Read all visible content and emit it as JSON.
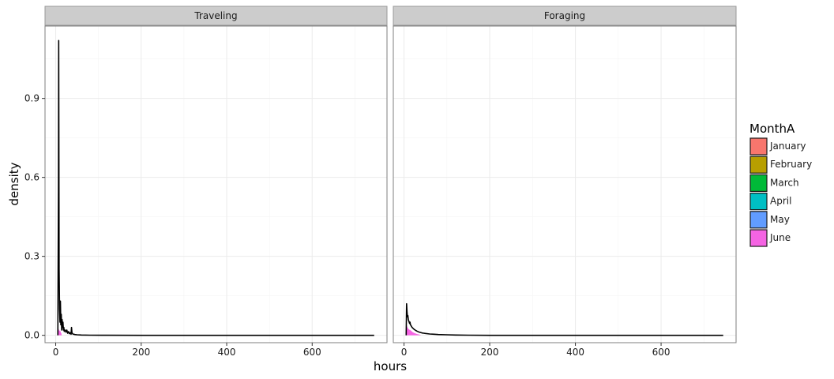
{
  "chart_data": {
    "type": "area",
    "subtype": "density",
    "facet_by": "behavior",
    "facets": [
      "Traveling",
      "Foraging"
    ],
    "xlabel": "hours",
    "ylabel": "density",
    "xlim": [
      -25,
      775
    ],
    "ylim": [
      -0.028,
      1.175
    ],
    "xticks": [
      0,
      200,
      400,
      600
    ],
    "yticks": [
      0.0,
      0.3,
      0.6,
      0.9
    ],
    "ytick_labels": [
      "0.0",
      "0.3",
      "0.6",
      "0.9"
    ],
    "grid": true,
    "legend": {
      "title": "MonthA",
      "position": "right",
      "entries": [
        {
          "name": "January",
          "color": "#F8766D"
        },
        {
          "name": "February",
          "color": "#B79F00"
        },
        {
          "name": "March",
          "color": "#00BA38"
        },
        {
          "name": "April",
          "color": "#00BFC4"
        },
        {
          "name": "May",
          "color": "#619CFF"
        },
        {
          "name": "June",
          "color": "#F564E3"
        }
      ]
    },
    "panels": [
      {
        "facet": "Traveling",
        "curve": {
          "x": [
            5,
            6.5,
            7,
            8,
            9,
            10,
            11,
            12,
            13,
            14,
            15,
            16,
            17,
            18,
            19,
            20,
            22,
            24,
            26,
            28,
            30,
            32,
            34,
            36,
            37,
            38,
            40,
            42,
            45,
            50,
            60,
            80,
            120,
            200,
            400,
            600,
            745
          ],
          "y": [
            0.0,
            0.57,
            1.12,
            0.25,
            0.1,
            0.05,
            0.13,
            0.04,
            0.08,
            0.02,
            0.06,
            0.03,
            0.05,
            0.02,
            0.03,
            0.015,
            0.02,
            0.012,
            0.02,
            0.008,
            0.014,
            0.006,
            0.01,
            0.004,
            0.03,
            0.01,
            0.005,
            0.004,
            0.003,
            0.002,
            0.001,
            0.0005,
            0.0002,
            0.0,
            0.0,
            0.0,
            0.0
          ]
        },
        "june_fill": {
          "x": [
            5,
            6,
            7,
            8,
            9,
            10,
            11,
            12,
            13,
            14
          ],
          "y": [
            0.0,
            0.01,
            0.025,
            0.02,
            0.015,
            0.02,
            0.015,
            0.01,
            0.008,
            0.0
          ]
        }
      },
      {
        "facet": "Foraging",
        "curve": {
          "x": [
            5,
            6,
            7,
            8,
            9,
            10,
            11,
            12,
            13,
            14,
            15,
            16,
            17,
            18,
            19,
            20,
            22,
            24,
            26,
            28,
            30,
            34,
            38,
            42,
            46,
            50,
            60,
            70,
            80,
            100,
            120,
            150,
            200,
            400,
            600,
            745
          ],
          "y": [
            0.0,
            0.12,
            0.09,
            0.07,
            0.075,
            0.06,
            0.055,
            0.05,
            0.045,
            0.05,
            0.04,
            0.038,
            0.035,
            0.032,
            0.03,
            0.028,
            0.025,
            0.022,
            0.02,
            0.018,
            0.016,
            0.013,
            0.011,
            0.009,
            0.008,
            0.007,
            0.005,
            0.004,
            0.003,
            0.002,
            0.001,
            0.0005,
            0.0,
            0.0,
            0.0,
            0.0
          ]
        },
        "june_fill": {
          "x": [
            5,
            6,
            7,
            8,
            9,
            10,
            12,
            14,
            16,
            18,
            20,
            25,
            30,
            35,
            40
          ],
          "y": [
            0.0,
            0.04,
            0.035,
            0.03,
            0.028,
            0.025,
            0.022,
            0.02,
            0.018,
            0.015,
            0.012,
            0.008,
            0.005,
            0.003,
            0.0
          ]
        }
      }
    ]
  }
}
